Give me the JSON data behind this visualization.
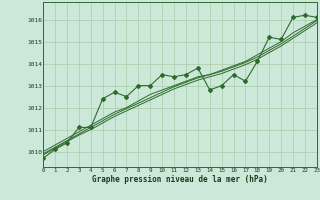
{
  "x": [
    0,
    1,
    2,
    3,
    4,
    5,
    6,
    7,
    8,
    9,
    10,
    11,
    12,
    13,
    14,
    15,
    16,
    17,
    18,
    19,
    20,
    21,
    22,
    23
  ],
  "y_main": [
    1009.7,
    1010.1,
    1010.4,
    1011.1,
    1011.1,
    1012.4,
    1012.7,
    1012.5,
    1013.0,
    1013.0,
    1013.5,
    1013.4,
    1013.5,
    1013.8,
    1012.8,
    1013.0,
    1013.5,
    1013.2,
    1014.1,
    1015.2,
    1015.1,
    1016.1,
    1016.2,
    1016.1
  ],
  "y_trend1": [
    1010.0,
    1010.3,
    1010.6,
    1010.9,
    1011.2,
    1011.5,
    1011.8,
    1012.0,
    1012.3,
    1012.6,
    1012.8,
    1013.0,
    1013.2,
    1013.4,
    1013.5,
    1013.7,
    1013.9,
    1014.1,
    1014.4,
    1014.7,
    1015.0,
    1015.4,
    1015.7,
    1016.0
  ],
  "y_trend2": [
    1009.9,
    1010.2,
    1010.5,
    1010.8,
    1011.1,
    1011.4,
    1011.7,
    1011.95,
    1012.2,
    1012.45,
    1012.7,
    1012.95,
    1013.15,
    1013.35,
    1013.5,
    1013.65,
    1013.85,
    1014.05,
    1014.3,
    1014.6,
    1014.9,
    1015.25,
    1015.6,
    1015.95
  ],
  "y_trend3": [
    1009.85,
    1010.15,
    1010.45,
    1010.75,
    1011.0,
    1011.3,
    1011.6,
    1011.85,
    1012.1,
    1012.35,
    1012.6,
    1012.85,
    1013.05,
    1013.25,
    1013.4,
    1013.55,
    1013.75,
    1013.95,
    1014.2,
    1014.5,
    1014.8,
    1015.15,
    1015.5,
    1015.85
  ],
  "bg_color": "#cce8d8",
  "line_color": "#2d6b2d",
  "grid_color": "#aaccaa",
  "ylabel_ticks": [
    1010,
    1011,
    1012,
    1013,
    1014,
    1015,
    1016
  ],
  "xlabel": "Graphe pression niveau de la mer (hPa)",
  "ylim": [
    1009.3,
    1016.8
  ],
  "xlim": [
    0,
    23
  ]
}
